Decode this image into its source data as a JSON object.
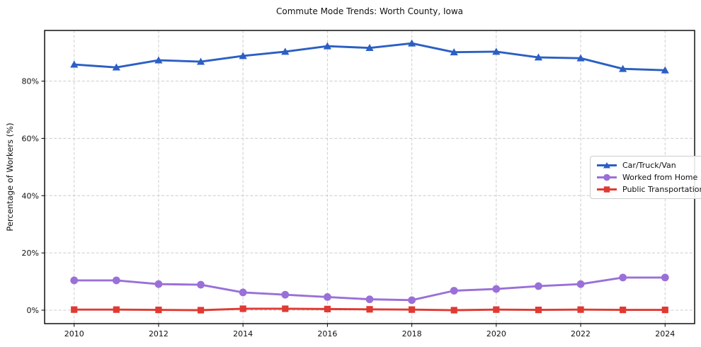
{
  "chart_data": {
    "type": "line",
    "title": "Commute Mode Trends: Worth County, Iowa",
    "xlabel": "",
    "ylabel": "Percentage of Workers (%)",
    "x": [
      2010,
      2011,
      2012,
      2013,
      2014,
      2015,
      2016,
      2017,
      2018,
      2019,
      2020,
      2021,
      2022,
      2023,
      2024
    ],
    "series": [
      {
        "name": "Car/Truck/Van",
        "color": "#2b5fc4",
        "marker": "triangle",
        "values": [
          85.8,
          84.8,
          87.3,
          86.8,
          88.8,
          90.3,
          92.2,
          91.6,
          93.2,
          90.1,
          90.3,
          88.3,
          88.0,
          84.3,
          83.8
        ]
      },
      {
        "name": "Worked from Home",
        "color": "#9a70d8",
        "marker": "circle",
        "values": [
          10.4,
          10.4,
          9.1,
          8.9,
          6.2,
          5.4,
          4.6,
          3.8,
          3.5,
          6.8,
          7.4,
          8.4,
          9.1,
          11.4,
          11.4
        ]
      },
      {
        "name": "Public Transportation",
        "color": "#e03a33",
        "marker": "square",
        "values": [
          0.2,
          0.2,
          0.1,
          0.0,
          0.5,
          0.5,
          0.4,
          0.3,
          0.2,
          0.0,
          0.2,
          0.1,
          0.2,
          0.1,
          0.1
        ]
      }
    ],
    "xticks": {
      "values": [
        2010,
        2012,
        2014,
        2016,
        2018,
        2020,
        2022,
        2024
      ],
      "labels": [
        "2010",
        "2012",
        "2014",
        "2016",
        "2018",
        "2020",
        "2022",
        "2024"
      ]
    },
    "yticks": {
      "values": [
        0,
        20,
        40,
        60,
        80
      ],
      "labels": [
        "0%",
        "20%",
        "40%",
        "60%",
        "80%"
      ]
    },
    "xlim": [
      2009.3,
      2024.7
    ],
    "ylim": [
      -4.7,
      97.7
    ],
    "grid": true,
    "grid_style": "dashed",
    "grid_color": "#cccccc",
    "frame_color": "#000000",
    "legend_position": "middle-right"
  }
}
